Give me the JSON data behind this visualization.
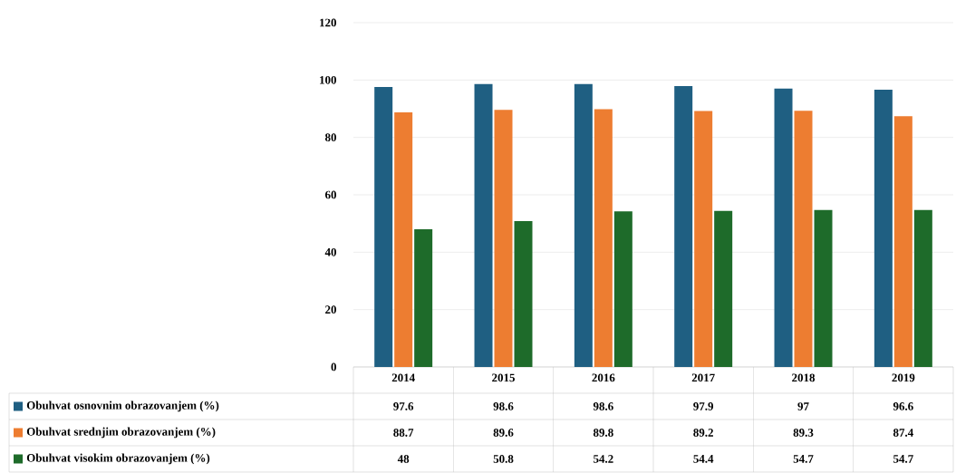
{
  "chart_data": {
    "type": "bar",
    "categories": [
      "2014",
      "2015",
      "2016",
      "2017",
      "2018",
      "2019"
    ],
    "series": [
      {
        "name": "Obuhvat osnovnim obrazovanjem (%)",
        "color": "#1f5f82",
        "values": [
          97.6,
          98.6,
          98.6,
          97.9,
          97,
          96.6
        ]
      },
      {
        "name": "Obuhvat srednjim obrazovanjem (%)",
        "color": "#ed7d31",
        "values": [
          88.7,
          89.6,
          89.8,
          89.2,
          89.3,
          87.4
        ]
      },
      {
        "name": "Obuhvat visokim obrazovanjem (%)",
        "color": "#1e6b2a",
        "values": [
          48,
          50.8,
          54.2,
          54.4,
          54.7,
          54.7
        ]
      }
    ],
    "ylim": [
      0,
      120
    ],
    "yticks": [
      0,
      20,
      40,
      60,
      80,
      100,
      120
    ],
    "grid": "y",
    "data_labels": true,
    "legend": "bottom left"
  }
}
